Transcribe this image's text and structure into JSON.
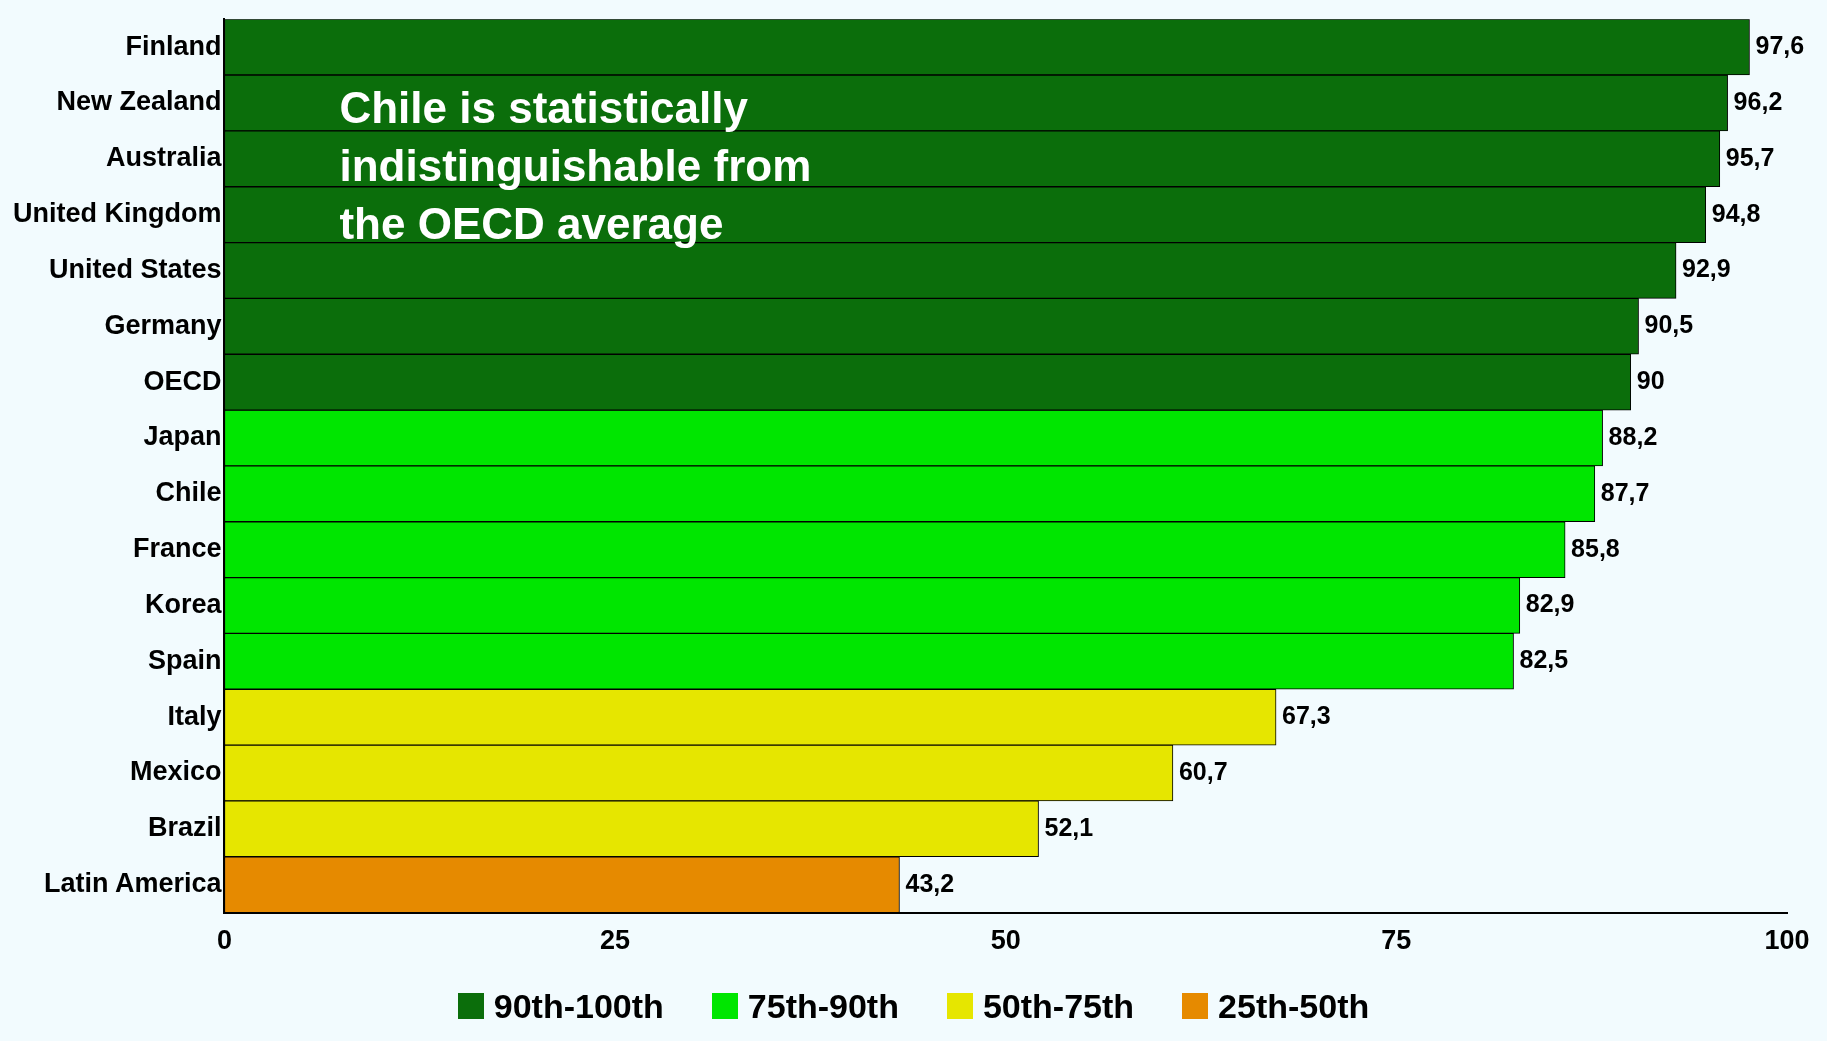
{
  "chart_data": {
    "type": "bar",
    "orientation": "horizontal",
    "stacked": true,
    "categories": [
      "Finland",
      "New Zealand",
      "Australia",
      "United Kingdom",
      "United States",
      "Germany",
      "OECD",
      "Japan",
      "Chile",
      "France",
      "Korea",
      "Spain",
      "Italy",
      "Mexico",
      "Brazil",
      "Latin America"
    ],
    "series": [
      {
        "name": "90th-100th",
        "color": "#0b6e0b",
        "values": [
          97.6,
          96.2,
          95.7,
          94.8,
          92.9,
          90.5,
          90,
          null,
          null,
          null,
          null,
          null,
          null,
          null,
          null,
          null
        ],
        "value_labels": [
          "97,6",
          "96,2",
          "95,7",
          "94,8",
          "92,9",
          "90,5",
          "90",
          null,
          null,
          null,
          null,
          null,
          null,
          null,
          null,
          null
        ]
      },
      {
        "name": "75th-90th",
        "color": "#00e600",
        "values": [
          null,
          null,
          null,
          null,
          null,
          null,
          null,
          88.2,
          87.7,
          85.8,
          82.9,
          82.5,
          null,
          null,
          null,
          null
        ],
        "value_labels": [
          null,
          null,
          null,
          null,
          null,
          null,
          null,
          "88,2",
          "87,7",
          "85,8",
          "82,9",
          "82,5",
          null,
          null,
          null,
          null
        ]
      },
      {
        "name": "50th-75th",
        "color": "#e6e600",
        "values": [
          null,
          null,
          null,
          null,
          null,
          null,
          null,
          null,
          null,
          null,
          null,
          null,
          67.3,
          60.7,
          52.1,
          null
        ],
        "value_labels": [
          null,
          null,
          null,
          null,
          null,
          null,
          null,
          null,
          null,
          null,
          null,
          null,
          "67,3",
          "60,7",
          "52,1",
          null
        ]
      },
      {
        "name": "25th-50th",
        "color": "#e68a00",
        "values": [
          null,
          null,
          null,
          null,
          null,
          null,
          null,
          null,
          null,
          null,
          null,
          null,
          null,
          null,
          null,
          43.2
        ],
        "value_labels": [
          null,
          null,
          null,
          null,
          null,
          null,
          null,
          null,
          null,
          null,
          null,
          null,
          null,
          null,
          null,
          "43,2"
        ]
      }
    ],
    "xlim": [
      0,
      100
    ],
    "xticks": [
      0,
      25,
      50,
      75,
      100
    ],
    "grid": false,
    "legend": "bottom",
    "annotations": [
      "Chile is statistically indistinguishable from the OECD average"
    ]
  }
}
